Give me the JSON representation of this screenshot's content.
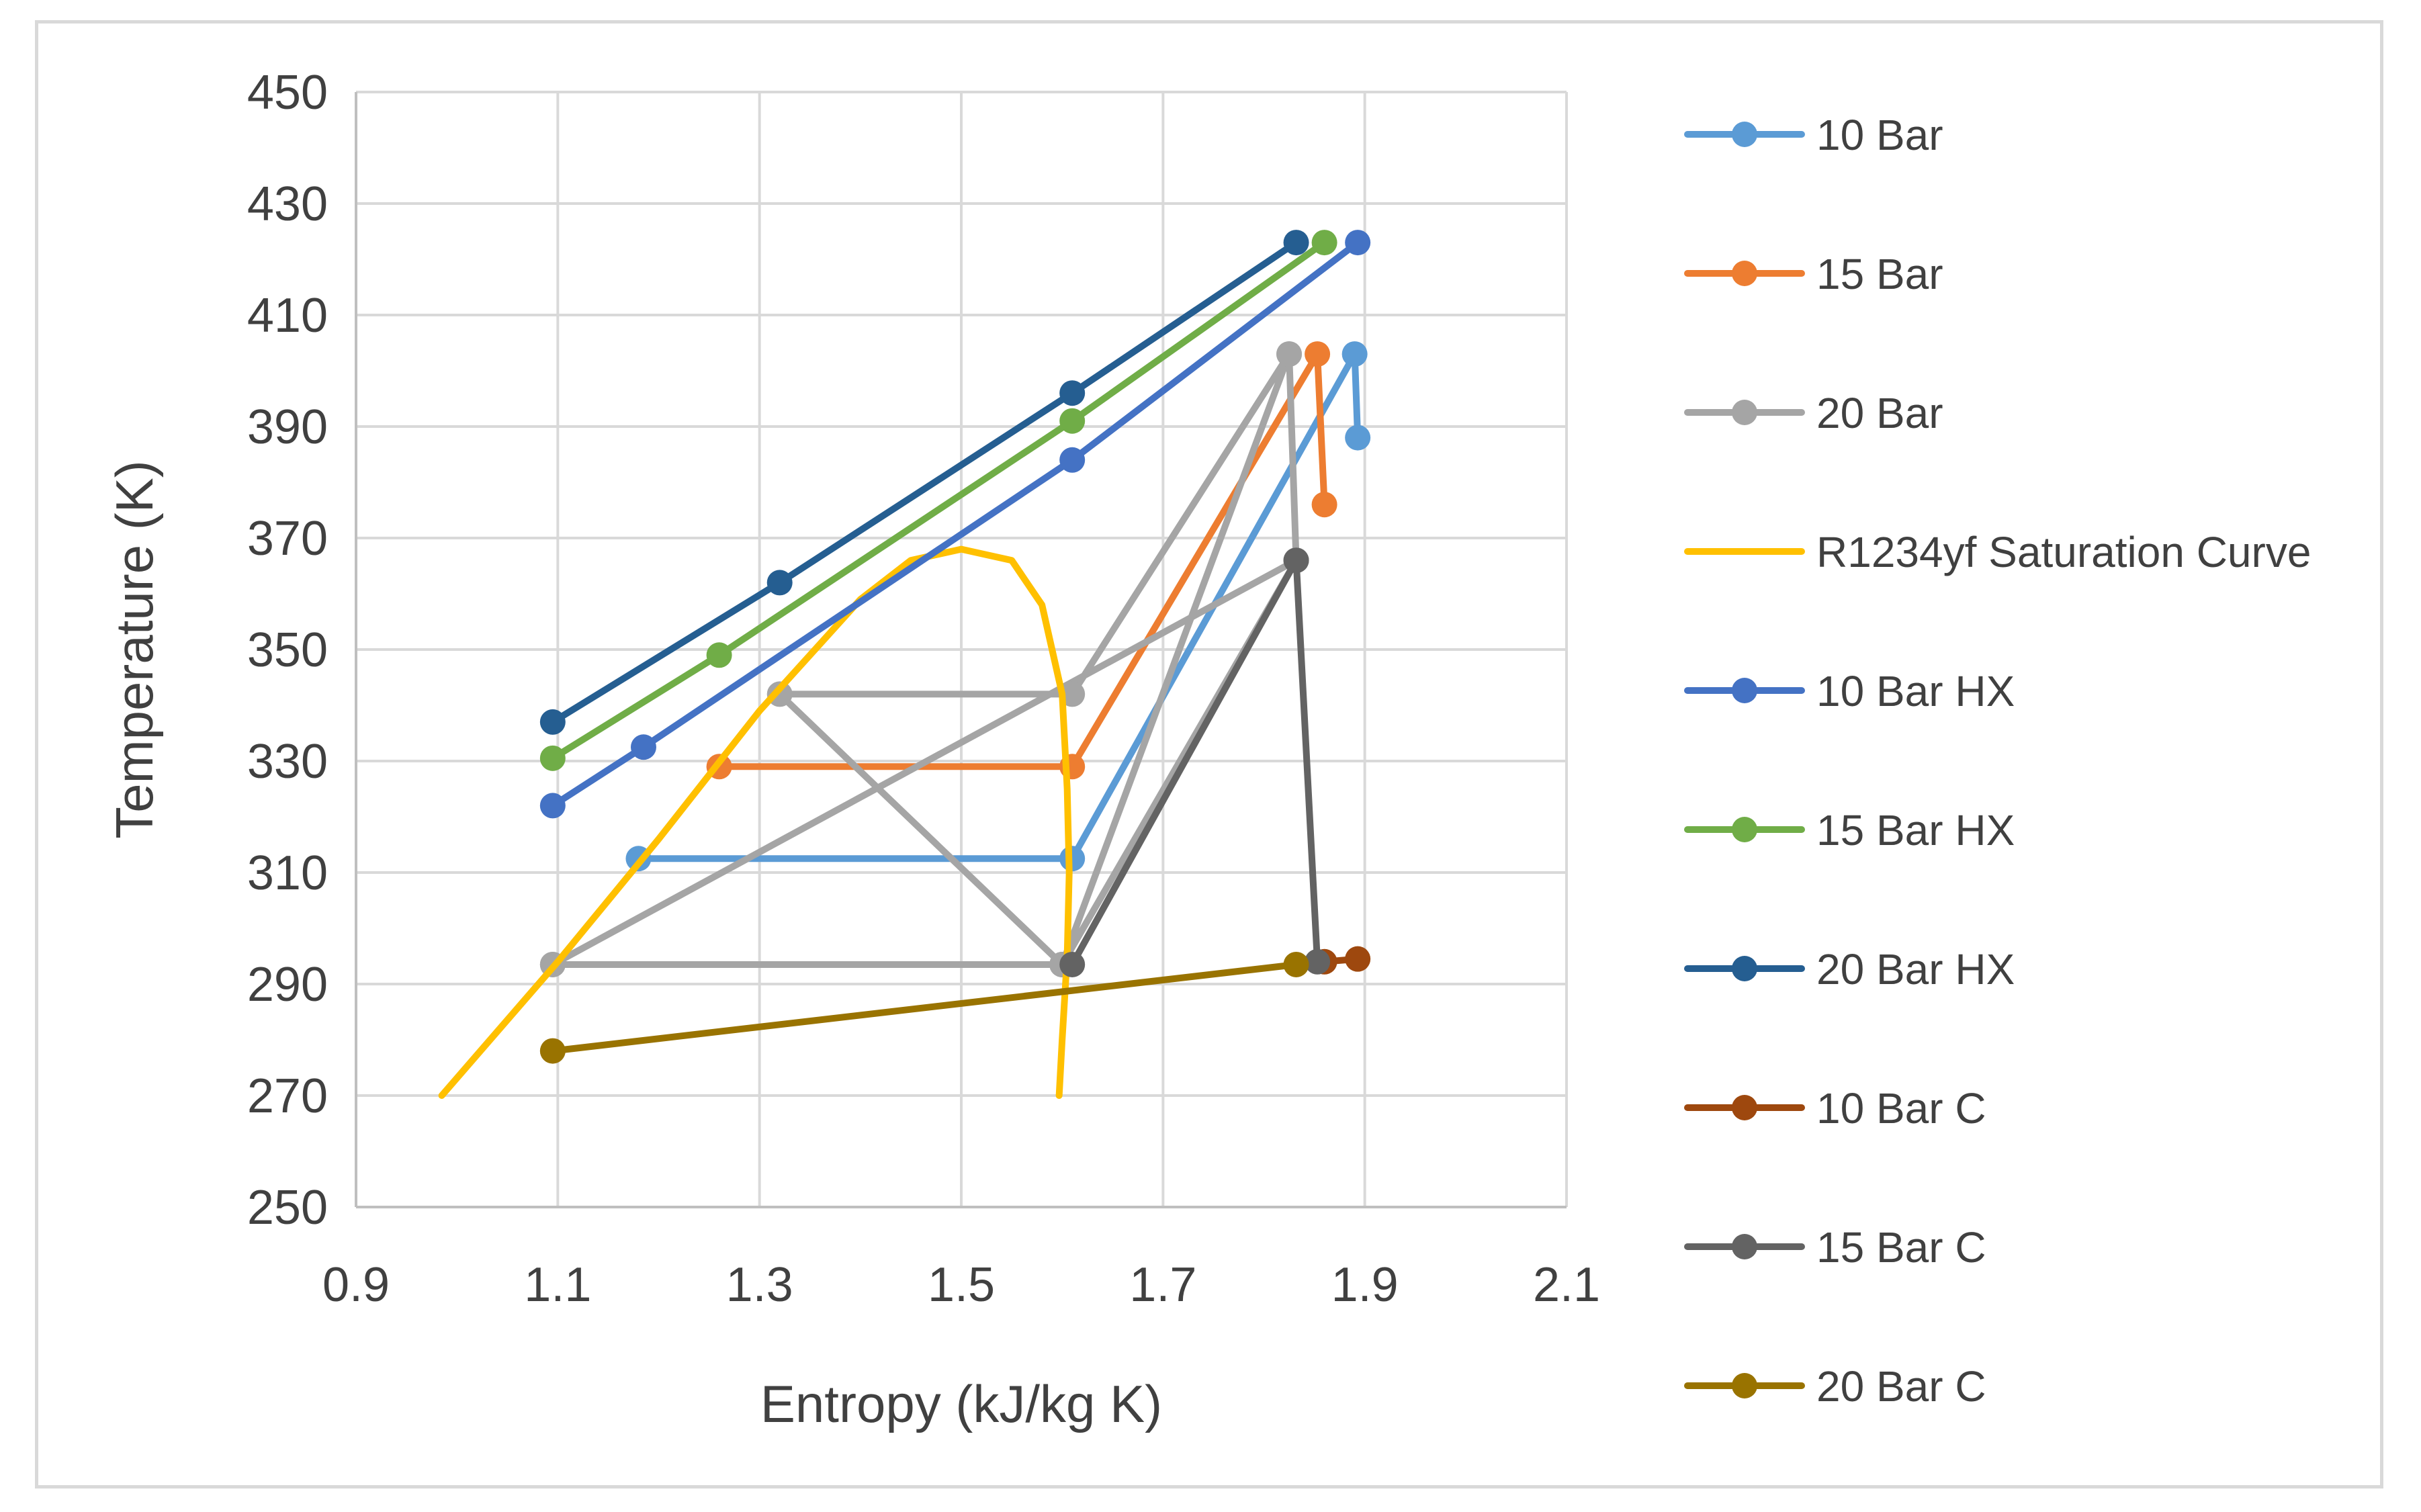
{
  "chart_data": {
    "type": "scatter",
    "title": "",
    "xlabel": "Entropy (kJ/kg K)",
    "ylabel": "Temperature (K)",
    "xlim": [
      0.9,
      2.1
    ],
    "ylim": [
      250,
      450
    ],
    "xticks": [
      0.9,
      1.1,
      1.3,
      1.5,
      1.7,
      1.9,
      2.1
    ],
    "yticks": [
      250,
      270,
      290,
      310,
      330,
      350,
      370,
      390,
      410,
      430,
      450
    ],
    "xtick_labels": [
      "0.9",
      "1.1",
      "1.3",
      "1.5",
      "1.7",
      "1.9",
      "2.1"
    ],
    "ytick_labels": [
      "250",
      "270",
      "290",
      "310",
      "330",
      "350",
      "370",
      "390",
      "410",
      "430",
      "450"
    ],
    "grid": true,
    "legend_position": "right",
    "series": [
      {
        "name": "10 Bar",
        "color": "#5B9BD5",
        "markers": true,
        "x": [
          1.18,
          1.61,
          1.89,
          1.893
        ],
        "y": [
          312.5,
          312.5,
          403,
          388
        ]
      },
      {
        "name": "15 Bar",
        "color": "#ED7D31",
        "markers": true,
        "x": [
          1.26,
          1.61,
          1.853,
          1.86
        ],
        "y": [
          329,
          329,
          403,
          376
        ]
      },
      {
        "name": "20 Bar",
        "color": "#A5A5A5",
        "markers": true,
        "x": [
          1.095,
          1.6,
          1.825,
          1.832,
          1.095,
          1.6,
          1.832,
          1.6,
          1.32,
          1.61,
          1.825
        ],
        "y": [
          293.5,
          293.5,
          403,
          366,
          293.5,
          293.5,
          366,
          293.5,
          342,
          342,
          403
        ]
      },
      {
        "name": "R1234yf Saturation Curve",
        "color": "#FFC000",
        "markers": false,
        "x": [
          0.985,
          1.1,
          1.2,
          1.3,
          1.4,
          1.45,
          1.5,
          1.55,
          1.58,
          1.6,
          1.605,
          1.607,
          1.605,
          1.6,
          1.597
        ],
        "y": [
          270,
          294,
          316,
          339,
          359,
          366,
          368,
          366,
          358,
          342,
          325,
          310,
          295,
          280,
          270
        ]
      },
      {
        "name": "10 Bar HX",
        "color": "#4472C4",
        "markers": true,
        "x": [
          1.095,
          1.185,
          1.61,
          1.893
        ],
        "y": [
          322,
          332.5,
          384,
          423
        ]
      },
      {
        "name": "15 Bar HX",
        "color": "#70AD47",
        "markers": true,
        "x": [
          1.095,
          1.26,
          1.61,
          1.86
        ],
        "y": [
          330.5,
          349,
          391,
          423
        ]
      },
      {
        "name": "20 Bar HX",
        "color": "#255E91",
        "markers": true,
        "x": [
          1.095,
          1.32,
          1.61,
          1.832
        ],
        "y": [
          337,
          362,
          396,
          423
        ]
      },
      {
        "name": "10 Bar C",
        "color": "#9E480E",
        "markers": true,
        "x": [
          1.86,
          1.893
        ],
        "y": [
          294,
          294.5
        ]
      },
      {
        "name": "15 Bar C",
        "color": "#636363",
        "markers": true,
        "x": [
          1.61,
          1.832,
          1.853
        ],
        "y": [
          293.5,
          366,
          294
        ]
      },
      {
        "name": "20 Bar C",
        "color": "#997300",
        "markers": true,
        "x": [
          1.095,
          1.832
        ],
        "y": [
          278,
          293.5
        ]
      }
    ]
  }
}
